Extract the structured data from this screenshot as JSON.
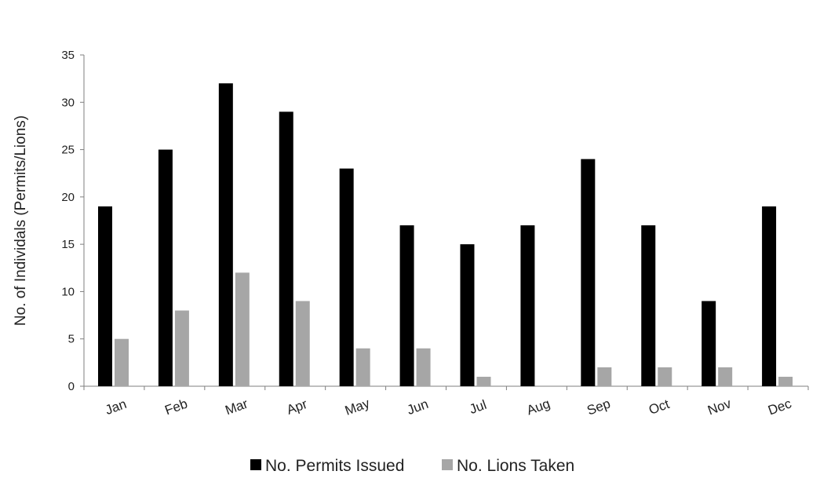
{
  "chart_data": {
    "type": "bar",
    "title": "",
    "xlabel": "",
    "ylabel": "No. of Individals (Permits/Lions)",
    "ylim": [
      0,
      35
    ],
    "yticks": [
      "0",
      "5",
      "10",
      "15",
      "20",
      "25",
      "30",
      "35"
    ],
    "grid": false,
    "legend_position": "bottom",
    "categories": [
      "Jan",
      "Feb",
      "Mar",
      "Apr",
      "May",
      "Jun",
      "Jul",
      "Aug",
      "Sep",
      "Oct",
      "Nov",
      "Dec"
    ],
    "series": [
      {
        "name": "No. Permits Issued",
        "color": "#000000",
        "values": [
          19,
          25,
          32,
          29,
          23,
          17,
          15,
          17,
          24,
          17,
          9,
          19
        ]
      },
      {
        "name": "No. Lions Taken",
        "color": "#a6a6a6",
        "values": [
          5,
          8,
          12,
          9,
          4,
          4,
          1,
          0,
          2,
          2,
          2,
          1
        ]
      }
    ]
  }
}
